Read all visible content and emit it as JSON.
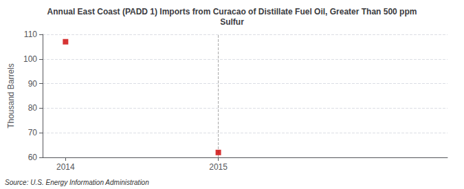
{
  "chart_data": {
    "type": "scatter",
    "title": "Annual East Coast (PADD 1) Imports from Curacao of Distillate Fuel Oil, Greater Than 500 ppm\nSulfur",
    "ylabel": "Thousand Barrels",
    "source": "Source: U.S. Energy Information Administration",
    "x": [
      2014,
      2015
    ],
    "values": [
      107,
      62
    ],
    "color": "#cc0000",
    "marker": "square",
    "vlines": [
      2015
    ],
    "xlim": [
      2013.85,
      2016.5
    ],
    "xticks": [
      2014,
      2015
    ],
    "ylim": [
      60,
      110
    ],
    "yticks": [
      60,
      70,
      80,
      90,
      100,
      110
    ],
    "grid": true
  }
}
